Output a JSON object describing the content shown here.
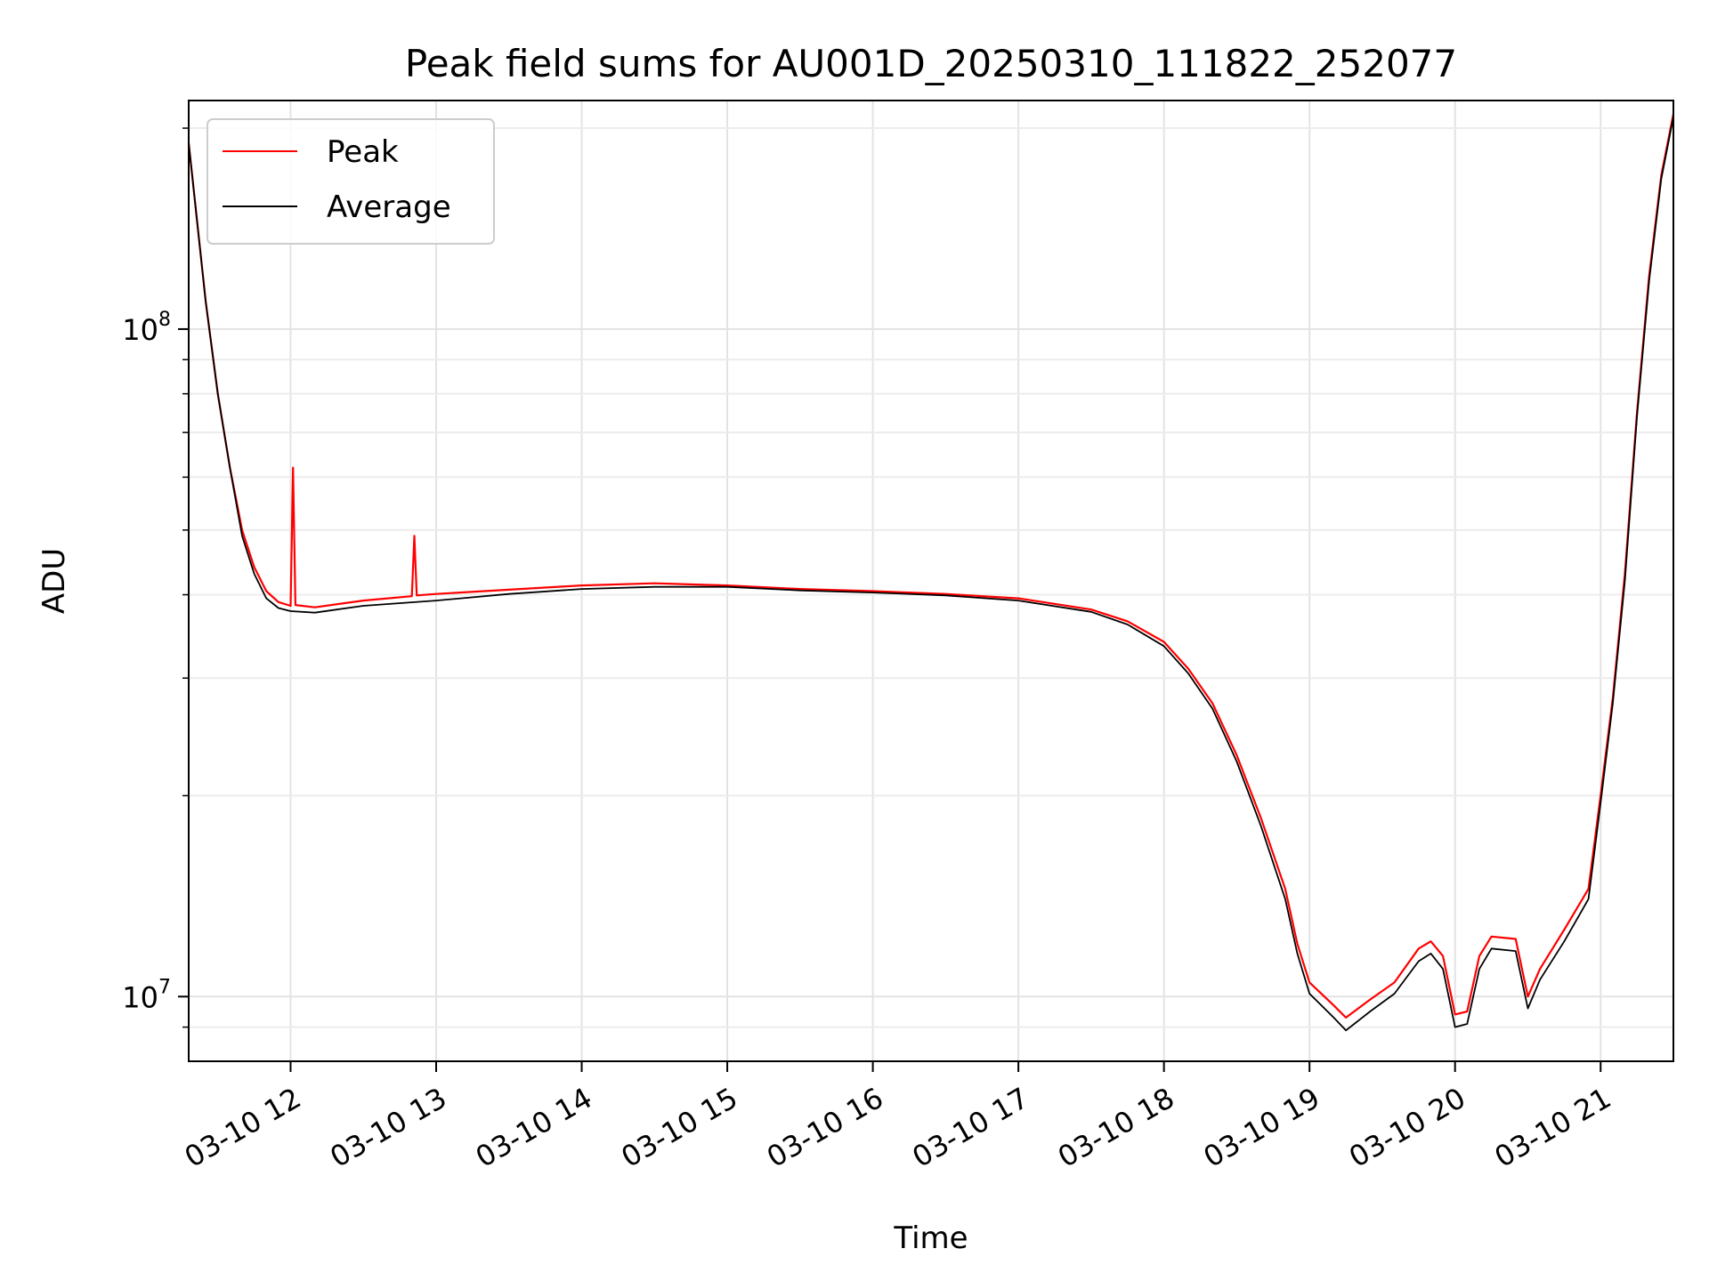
{
  "chart_data": {
    "type": "line",
    "title": "Peak field sums for AU001D_20250310_111822_252077",
    "xlabel": "Time",
    "ylabel": "ADU",
    "yscale": "log",
    "xlim": [
      "2025-03-10 11:18",
      "2025-03-10 21:30"
    ],
    "ylim": [
      8000000,
      220000000
    ],
    "grid": true,
    "legend_position": "upper-left",
    "x_ticks": [
      {
        "value": "2025-03-10 12:00",
        "label": "03-10 12"
      },
      {
        "value": "2025-03-10 13:00",
        "label": "03-10 13"
      },
      {
        "value": "2025-03-10 14:00",
        "label": "03-10 14"
      },
      {
        "value": "2025-03-10 15:00",
        "label": "03-10 15"
      },
      {
        "value": "2025-03-10 16:00",
        "label": "03-10 16"
      },
      {
        "value": "2025-03-10 17:00",
        "label": "03-10 17"
      },
      {
        "value": "2025-03-10 18:00",
        "label": "03-10 18"
      },
      {
        "value": "2025-03-10 19:00",
        "label": "03-10 19"
      },
      {
        "value": "2025-03-10 20:00",
        "label": "03-10 20"
      },
      {
        "value": "2025-03-10 21:00",
        "label": "03-10 21"
      }
    ],
    "y_ticks": [
      {
        "value": 10000000,
        "base": "10",
        "exp": "7"
      },
      {
        "value": 100000000,
        "base": "10",
        "exp": "8"
      }
    ],
    "series": [
      {
        "name": "Peak",
        "color": "#ff0000",
        "x": [
          "2025-03-10 11:18",
          "2025-03-10 11:25",
          "2025-03-10 11:30",
          "2025-03-10 11:35",
          "2025-03-10 11:40",
          "2025-03-10 11:45",
          "2025-03-10 11:50",
          "2025-03-10 11:55",
          "2025-03-10 12:00",
          "2025-03-10 12:01",
          "2025-03-10 12:02",
          "2025-03-10 12:10",
          "2025-03-10 12:30",
          "2025-03-10 12:50",
          "2025-03-10 12:51",
          "2025-03-10 12:52",
          "2025-03-10 13:00",
          "2025-03-10 13:30",
          "2025-03-10 14:00",
          "2025-03-10 14:30",
          "2025-03-10 15:00",
          "2025-03-10 15:30",
          "2025-03-10 16:00",
          "2025-03-10 16:30",
          "2025-03-10 17:00",
          "2025-03-10 17:30",
          "2025-03-10 17:45",
          "2025-03-10 18:00",
          "2025-03-10 18:10",
          "2025-03-10 18:20",
          "2025-03-10 18:30",
          "2025-03-10 18:40",
          "2025-03-10 18:50",
          "2025-03-10 18:55",
          "2025-03-10 19:00",
          "2025-03-10 19:10",
          "2025-03-10 19:15",
          "2025-03-10 19:25",
          "2025-03-10 19:35",
          "2025-03-10 19:45",
          "2025-03-10 19:50",
          "2025-03-10 19:55",
          "2025-03-10 20:00",
          "2025-03-10 20:05",
          "2025-03-10 20:10",
          "2025-03-10 20:15",
          "2025-03-10 20:25",
          "2025-03-10 20:30",
          "2025-03-10 20:35",
          "2025-03-10 20:45",
          "2025-03-10 20:55",
          "2025-03-10 21:00",
          "2025-03-10 21:05",
          "2025-03-10 21:10",
          "2025-03-10 21:15",
          "2025-03-10 21:20",
          "2025-03-10 21:25",
          "2025-03-10 21:30"
        ],
        "y": [
          190000000,
          110000000,
          80000000,
          62000000,
          50000000,
          44000000,
          40500000,
          39000000,
          38500000,
          62000000,
          38600000,
          38300000,
          39200000,
          39800000,
          49000000,
          39900000,
          40100000,
          40700000,
          41300000,
          41600000,
          41300000,
          40800000,
          40500000,
          40100000,
          39500000,
          38000000,
          36500000,
          34000000,
          31000000,
          27500000,
          23000000,
          18500000,
          14500000,
          12000000,
          10500000,
          9700000,
          9300000,
          9900000,
          10500000,
          11800000,
          12100000,
          11500000,
          9400000,
          9500000,
          11500000,
          12300000,
          12200000,
          10000000,
          11000000,
          12600000,
          14500000,
          20000000,
          28000000,
          43000000,
          75000000,
          120000000,
          170000000,
          210000000
        ]
      },
      {
        "name": "Average",
        "color": "#000000",
        "x": [
          "2025-03-10 11:18",
          "2025-03-10 11:25",
          "2025-03-10 11:30",
          "2025-03-10 11:35",
          "2025-03-10 11:40",
          "2025-03-10 11:45",
          "2025-03-10 11:50",
          "2025-03-10 11:55",
          "2025-03-10 12:00",
          "2025-03-10 12:10",
          "2025-03-10 12:30",
          "2025-03-10 13:00",
          "2025-03-10 13:30",
          "2025-03-10 14:00",
          "2025-03-10 14:30",
          "2025-03-10 15:00",
          "2025-03-10 15:30",
          "2025-03-10 16:00",
          "2025-03-10 16:30",
          "2025-03-10 17:00",
          "2025-03-10 17:30",
          "2025-03-10 17:45",
          "2025-03-10 18:00",
          "2025-03-10 18:10",
          "2025-03-10 18:20",
          "2025-03-10 18:30",
          "2025-03-10 18:40",
          "2025-03-10 18:50",
          "2025-03-10 18:55",
          "2025-03-10 19:00",
          "2025-03-10 19:10",
          "2025-03-10 19:15",
          "2025-03-10 19:25",
          "2025-03-10 19:35",
          "2025-03-10 19:45",
          "2025-03-10 19:50",
          "2025-03-10 19:55",
          "2025-03-10 20:00",
          "2025-03-10 20:05",
          "2025-03-10 20:10",
          "2025-03-10 20:15",
          "2025-03-10 20:25",
          "2025-03-10 20:30",
          "2025-03-10 20:35",
          "2025-03-10 20:45",
          "2025-03-10 20:55",
          "2025-03-10 21:00",
          "2025-03-10 21:05",
          "2025-03-10 21:10",
          "2025-03-10 21:15",
          "2025-03-10 21:20",
          "2025-03-10 21:25",
          "2025-03-10 21:30"
        ],
        "y": [
          190000000,
          110000000,
          80000000,
          62000000,
          49000000,
          43000000,
          39500000,
          38200000,
          37800000,
          37600000,
          38500000,
          39200000,
          40100000,
          40800000,
          41100000,
          41100000,
          40600000,
          40300000,
          39900000,
          39200000,
          37700000,
          36100000,
          33500000,
          30500000,
          27000000,
          22500000,
          18000000,
          14000000,
          11600000,
          10100000,
          9300000,
          8900000,
          9500000,
          10100000,
          11300000,
          11600000,
          11000000,
          9000000,
          9100000,
          11000000,
          11800000,
          11700000,
          9600000,
          10600000,
          12100000,
          14000000,
          19500000,
          27500000,
          42000000,
          74000000,
          118000000,
          168000000,
          208000000
        ]
      }
    ]
  }
}
